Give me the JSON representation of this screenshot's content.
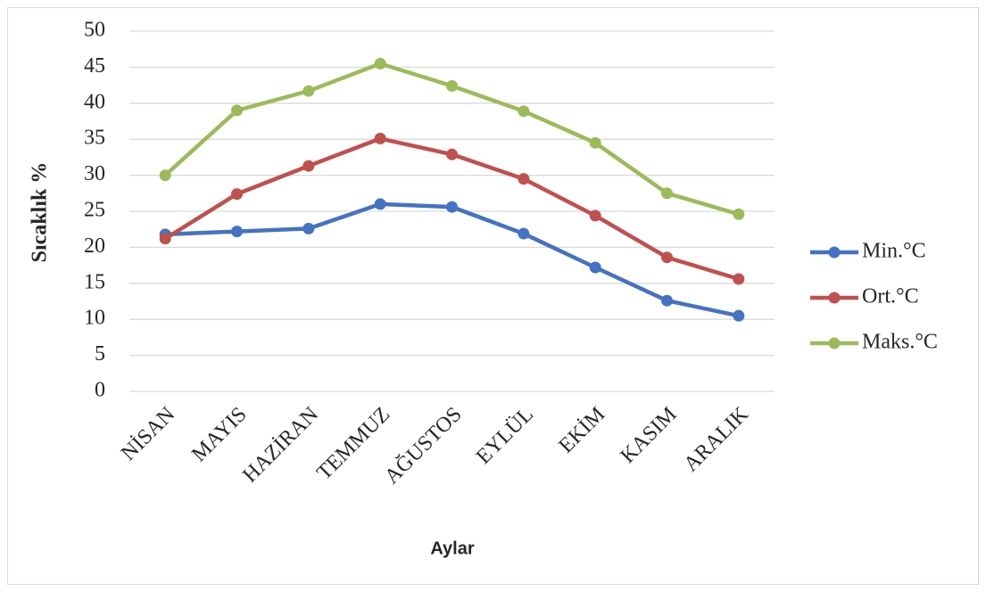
{
  "chart_data": {
    "type": "line",
    "y_label": "Sıcaklık %",
    "x_label": "Aylar",
    "categories": [
      "NİSAN",
      "MAYIS",
      "HAZİRAN",
      "TEMMUZ",
      "AĞUSTOS",
      "EYLÜL",
      "EKİM",
      "KASIM",
      "ARALIK"
    ],
    "series": [
      {
        "name": "Min.°C",
        "color": "#4472c4",
        "values": [
          21.8,
          22.2,
          22.6,
          26.0,
          25.6,
          21.9,
          17.2,
          12.6,
          10.5
        ]
      },
      {
        "name": "Ort.°C",
        "color": "#c0504d",
        "values": [
          21.2,
          27.4,
          31.3,
          35.1,
          32.9,
          29.5,
          24.4,
          18.6,
          15.6
        ]
      },
      {
        "name": "Maks.°C",
        "color": "#9bbb59",
        "values": [
          30.0,
          39.0,
          41.7,
          45.5,
          42.4,
          38.9,
          34.5,
          27.5,
          24.6
        ]
      }
    ],
    "ylim": [
      0,
      50
    ],
    "yticks": [
      0,
      5,
      10,
      15,
      20,
      25,
      30,
      35,
      40,
      45,
      50
    ],
    "grid": true,
    "legend": "right"
  }
}
